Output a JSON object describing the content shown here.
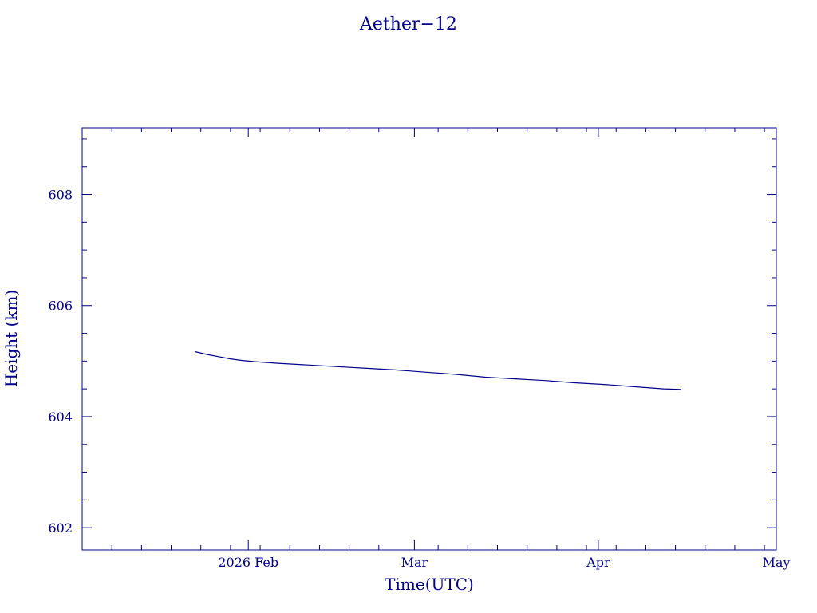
{
  "colors": {
    "ink": "#00008b",
    "background": "#ffffff"
  },
  "chart_data": {
    "type": "line",
    "title": "Aether−12",
    "xlabel": "Time(UTC)",
    "ylabel": "Height (km)",
    "x_axis": {
      "scale": "time",
      "range": [
        "2026-01-04",
        "2026-05-01"
      ],
      "major_ticks": [
        {
          "date": "2026-02-01",
          "label": "2026 Feb"
        },
        {
          "date": "2026-03-01",
          "label": "Mar"
        },
        {
          "date": "2026-04-01",
          "label": "Apr"
        },
        {
          "date": "2026-05-01",
          "label": "May"
        }
      ],
      "minor_tick_interval_days": 5
    },
    "y_axis": {
      "range": [
        601.6,
        609.2
      ],
      "major_ticks": [
        {
          "value": 602,
          "label": "602"
        },
        {
          "value": 604,
          "label": "604"
        },
        {
          "value": 606,
          "label": "606"
        },
        {
          "value": 608,
          "label": "608"
        }
      ],
      "minor_tick_interval": 0.5
    },
    "grid": false,
    "series": [
      {
        "color": "#00008b",
        "points": [
          [
            "2026-01-23",
            605.17
          ],
          [
            "2026-01-25",
            605.12
          ],
          [
            "2026-01-27",
            605.08
          ],
          [
            "2026-01-29",
            605.04
          ],
          [
            "2026-01-31",
            605.01
          ],
          [
            "2026-02-02",
            604.99
          ],
          [
            "2026-02-06",
            604.96
          ],
          [
            "2026-02-11",
            604.93
          ],
          [
            "2026-02-16",
            604.9
          ],
          [
            "2026-02-21",
            604.87
          ],
          [
            "2026-02-26",
            604.84
          ],
          [
            "2026-03-03",
            604.8
          ],
          [
            "2026-03-08",
            604.76
          ],
          [
            "2026-03-13",
            604.71
          ],
          [
            "2026-03-18",
            604.68
          ],
          [
            "2026-03-23",
            604.65
          ],
          [
            "2026-03-28",
            604.61
          ],
          [
            "2026-04-02",
            604.58
          ],
          [
            "2026-04-07",
            604.54
          ],
          [
            "2026-04-12",
            604.5
          ],
          [
            "2026-04-15",
            604.49
          ]
        ]
      }
    ]
  }
}
